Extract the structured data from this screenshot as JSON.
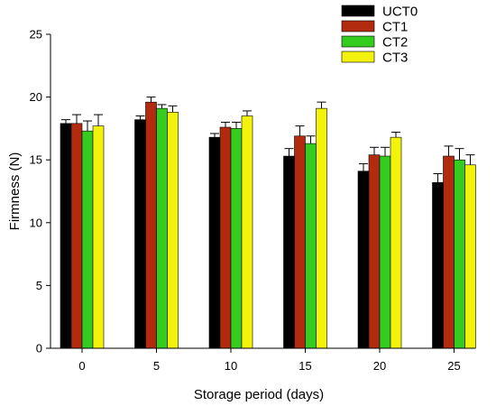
{
  "chart_data": {
    "type": "bar",
    "title": "",
    "xlabel": "Storage period (days)",
    "ylabel": "Firmness (N)",
    "categories": [
      "0",
      "5",
      "10",
      "15",
      "20",
      "25"
    ],
    "ylim": [
      0,
      25
    ],
    "yticks": [
      "0",
      "5",
      "10",
      "15",
      "20",
      "25"
    ],
    "grid": false,
    "legend_position": "top-right",
    "series": [
      {
        "name": "UCT0",
        "color": "#000000",
        "values": [
          17.9,
          18.2,
          16.8,
          15.3,
          14.1,
          13.2
        ],
        "errors": [
          0.3,
          0.3,
          0.3,
          0.6,
          0.6,
          0.7
        ]
      },
      {
        "name": "CT1",
        "color": "#b22b0e",
        "values": [
          17.9,
          19.6,
          17.6,
          16.9,
          15.4,
          15.3
        ],
        "errors": [
          0.7,
          0.4,
          0.4,
          0.8,
          0.6,
          0.8
        ]
      },
      {
        "name": "CT2",
        "color": "#33cc1f",
        "values": [
          17.3,
          19.1,
          17.5,
          16.3,
          15.3,
          15.0
        ],
        "errors": [
          0.8,
          0.3,
          0.5,
          0.6,
          0.7,
          0.9
        ]
      },
      {
        "name": "CT3",
        "color": "#f2f20a",
        "values": [
          17.7,
          18.8,
          18.5,
          19.1,
          16.8,
          14.6
        ],
        "errors": [
          0.9,
          0.5,
          0.4,
          0.5,
          0.4,
          0.8
        ]
      }
    ]
  }
}
